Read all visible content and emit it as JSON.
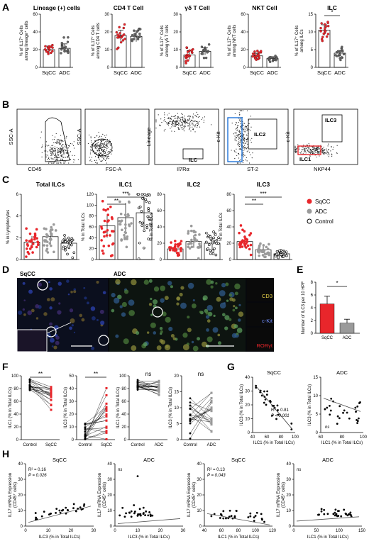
{
  "labels": {
    "A": "A",
    "B": "B",
    "C": "C",
    "D": "D",
    "E": "E",
    "F": "F",
    "G": "G",
    "H": "H"
  },
  "colors": {
    "sqcc": "#e8262b",
    "adc": "#9a9a9a",
    "control": "#000000",
    "blue_gate": "#1e73d8",
    "red_gate": "#e8262b"
  },
  "panelA": {
    "ylabel_lines": [
      "% of IL17⁺ Cells",
      "among cells"
    ],
    "xticks": [
      "SqCC",
      "ADC"
    ],
    "sig": "*",
    "plots": [
      {
        "title": "Lineage (+) cells",
        "ytop": "among lineage⁺ cells",
        "yticks": [
          "0",
          "20",
          "40",
          "60"
        ],
        "means": [
          20,
          21.5
        ],
        "sd": [
          4,
          5
        ],
        "ymax": 60
      },
      {
        "title": "CD4 T Cell",
        "ytop": "among CD4 T cells",
        "yticks": [
          "0",
          "10",
          "20",
          "30"
        ],
        "means": [
          18,
          17.5
        ],
        "sd": [
          3,
          3
        ],
        "ymax": 30
      },
      {
        "title": "γδ T Cell",
        "ytop": "among γδ T cells",
        "yticks": [
          "0",
          "10",
          "20",
          "30"
        ],
        "means": [
          7,
          9
        ],
        "sd": [
          2.5,
          2
        ],
        "ymax": 30
      },
      {
        "title": "NKT Cell",
        "ytop": "among NKT cells",
        "yticks": [
          "0",
          "20",
          "40",
          "60"
        ],
        "means": [
          13,
          10
        ],
        "sd": [
          3,
          2
        ],
        "ymax": 60
      },
      {
        "title": "ILC",
        "ytop": "among ILCs",
        "yticks": [
          "0",
          "5",
          "10",
          "15"
        ],
        "means": [
          10.5,
          4
        ],
        "sd": [
          1.5,
          0.7
        ],
        "ymax": 15
      }
    ]
  },
  "panelB": {
    "plots": [
      {
        "ylabel": "SSC-A",
        "xlabel": "CD45"
      },
      {
        "ylabel": "SSC-A",
        "xlabel": "FSC-A"
      },
      {
        "ylabel": "Lineage",
        "xlabel": "Il7Rα",
        "gate": "ILC"
      },
      {
        "ylabel": "c-Kit",
        "xlabel": "ST-2",
        "gate": "ILC2"
      },
      {
        "ylabel": "c-Kit",
        "xlabel": "NKP44",
        "gate": "ILC3",
        "gate2": "ILC1"
      }
    ]
  },
  "panelC": {
    "plots": [
      {
        "title": "Total ILCs",
        "ylabel": "% in Lymphocytes",
        "yticks": [
          "0",
          "2",
          "4",
          "6"
        ],
        "ymax": 6,
        "means": [
          1.6,
          2.1,
          1.5
        ],
        "sig": []
      },
      {
        "title": "ILC1",
        "ylabel": "% in Total ILCs",
        "yticks": [
          "0",
          "20",
          "40",
          "60",
          "80",
          "100",
          "120"
        ],
        "ymax": 120,
        "means": [
          62,
          77,
          86
        ],
        "sig": [
          "**",
          "***"
        ]
      },
      {
        "title": "ILC2",
        "ylabel": "% in Total ILCs",
        "yticks": [
          "0",
          "20",
          "40",
          "60",
          "80"
        ],
        "ymax": 80,
        "means": [
          13,
          22,
          20
        ],
        "sig": []
      },
      {
        "title": "ILC3",
        "ylabel": "% in Total ILCs",
        "yticks": [
          "0",
          "20",
          "40",
          "60",
          "80"
        ],
        "ymax": 80,
        "means": [
          22,
          12,
          7
        ],
        "sig": [
          "**",
          "***"
        ]
      }
    ],
    "legend": [
      {
        "label": "SqCC",
        "color": "#e8262b",
        "fill": true
      },
      {
        "label": "ADC",
        "color": "#9a9a9a",
        "fill": true
      },
      {
        "label": "Control",
        "color": "#000000",
        "fill": false
      }
    ]
  },
  "panelD": {
    "left_title": "SqCC",
    "right_title": "ADC",
    "channels": [
      {
        "label": "CD3",
        "color": "#e8d24a"
      },
      {
        "label": "c-Kit",
        "color": "#6f8cff"
      },
      {
        "label": "RORγt",
        "color": "#e8262b"
      }
    ]
  },
  "panelE": {
    "ylabel": "Number of ILC3 per 10 HPF",
    "yticks": [
      "0",
      "2",
      "4",
      "6",
      "8"
    ],
    "ymax": 8,
    "bars": [
      {
        "label": "SqCC",
        "value": 4.6,
        "err": 1.2,
        "color": "#e8262b"
      },
      {
        "label": "ADC",
        "value": 1.6,
        "err": 0.6,
        "color": "#9a9a9a"
      }
    ],
    "sig": "*"
  },
  "panelF": {
    "plots": [
      {
        "ylabel": "ILC1 (% in Total ILCs)",
        "yticks": [
          "0",
          "20",
          "40",
          "60",
          "80",
          "100"
        ],
        "ymax": 100,
        "x": [
          "Control",
          "SqCC"
        ],
        "sig": "**",
        "color": "#e8262b"
      },
      {
        "ylabel": "ILC3 (% in Total ILCs)",
        "yticks": [
          "0",
          "10",
          "20",
          "30",
          "40",
          "50"
        ],
        "ymax": 50,
        "x": [
          "Control",
          "SqCC"
        ],
        "sig": "**",
        "color": "#e8262b"
      },
      {
        "ylabel": "ILC1 (% in Total ILCs)",
        "yticks": [
          "0",
          "20",
          "40",
          "60",
          "80",
          "100"
        ],
        "ymax": 100,
        "x": [
          "Control",
          "ADC"
        ],
        "sig": "ns",
        "color": "#9a9a9a"
      },
      {
        "ylabel": "ILC3 (% in Total ILCs)",
        "yticks": [
          "0",
          "5",
          "10",
          "15",
          "20"
        ],
        "ymax": 20,
        "x": [
          "Control",
          "ADC"
        ],
        "sig": "ns",
        "color": "#9a9a9a"
      }
    ]
  },
  "panelG": {
    "plots": [
      {
        "title": "SqCC",
        "ylabel": "ILC3 (% in Total ILCs)",
        "xlabel": "ILC1 (% in Total ILCs)",
        "xticks": [
          "40",
          "60",
          "80",
          "100"
        ],
        "yticks": [
          "0",
          "10",
          "20",
          "30",
          "40"
        ],
        "r2": "R² = 0.81",
        "p": "P < 0.001"
      },
      {
        "title": "ADC",
        "ylabel": "ILC3 (% in Total ILCs)",
        "xlabel": "ILC1 (% in Total ILCs)",
        "xticks": [
          "60",
          "80",
          "100"
        ],
        "yticks": [
          "0",
          "5",
          "10",
          "15"
        ],
        "r2": "",
        "p": "ns"
      }
    ]
  },
  "panelH": {
    "ylabel1": "IL17 mRNA Expression",
    "ylabel2": "(CD45⁺ cells)",
    "plots": [
      {
        "title": "SqCC",
        "xlabel": "ILC3 (% in Total ILCs)",
        "xticks": [
          "0",
          "10",
          "20",
          "30"
        ],
        "yticks": [
          "0",
          "10",
          "20",
          "30",
          "40"
        ],
        "r2": "R² = 0.16",
        "p": "P = 0.026"
      },
      {
        "title": "ADC",
        "xlabel": "ILC3 (% in Total ILCs)",
        "xticks": [
          "0",
          "10",
          "20",
          "30"
        ],
        "yticks": [
          "0",
          "10",
          "20",
          "30",
          "40"
        ],
        "r2": "",
        "p": "ns"
      },
      {
        "title": "SqCC",
        "xlabel": "ILC1 (% in Total ILCs)",
        "xticks": [
          "40",
          "60",
          "80",
          "100",
          "120"
        ],
        "yticks": [
          "0",
          "10",
          "20",
          "30",
          "40"
        ],
        "r2": "R² = 0.13",
        "p": "P = 0.043"
      },
      {
        "title": "ADC",
        "xlabel": "ILC1 (% in Total ILCs)",
        "xticks": [
          "0",
          "50",
          "100",
          "150"
        ],
        "yticks": [
          "0",
          "10",
          "20",
          "30",
          "40"
        ],
        "r2": "",
        "p": "ns"
      }
    ]
  }
}
